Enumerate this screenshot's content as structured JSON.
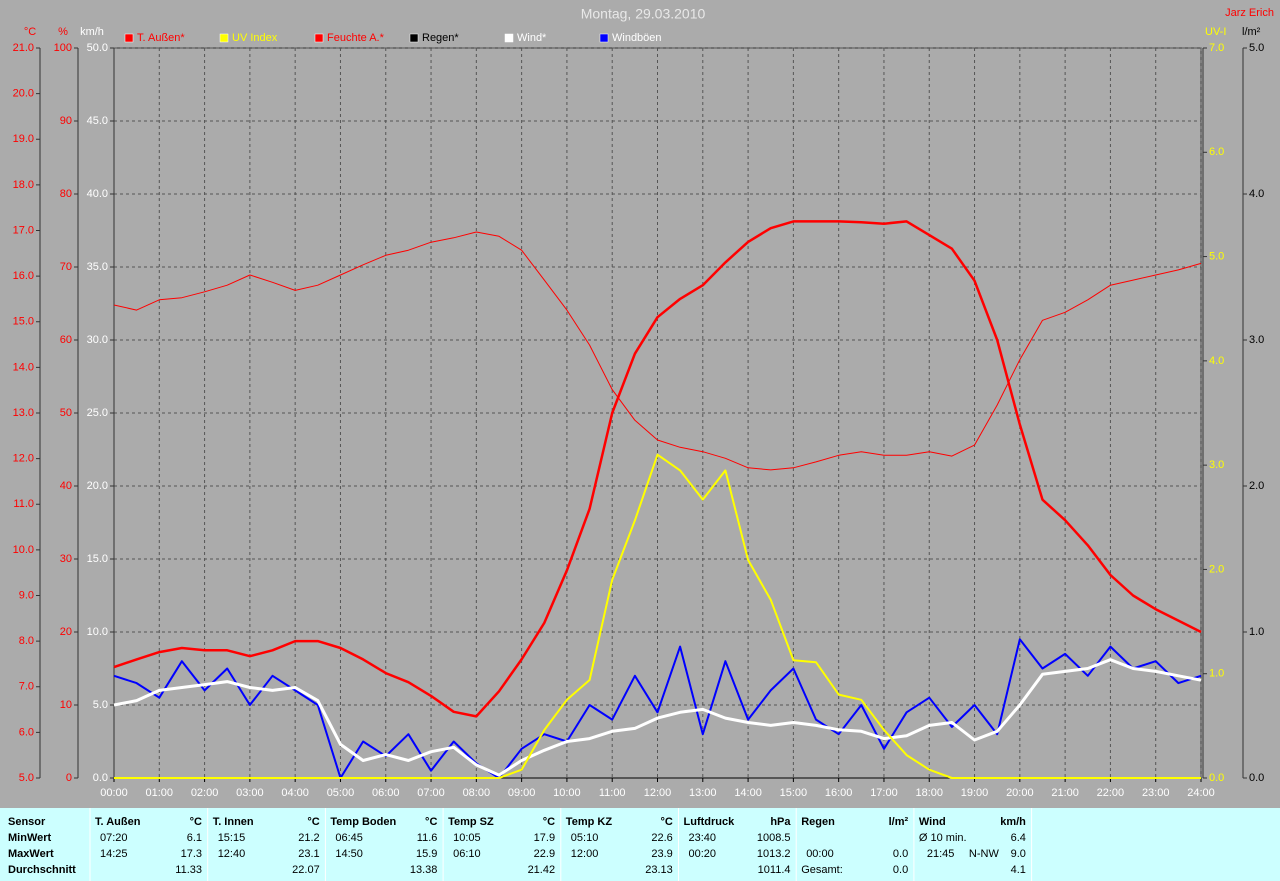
{
  "chart_data": {
    "type": "line",
    "title": "Montag, 29.03.2010",
    "author": "Jarz Erich",
    "grid": true,
    "x": [
      0,
      0.5,
      1,
      1.5,
      2,
      2.5,
      3,
      3.5,
      4,
      4.5,
      5,
      5.5,
      6,
      6.5,
      7,
      7.5,
      8,
      8.5,
      9,
      9.5,
      10,
      10.5,
      11,
      11.5,
      12,
      12.5,
      13,
      13.5,
      14,
      14.5,
      15,
      15.5,
      16,
      16.5,
      17,
      17.5,
      18,
      18.5,
      19,
      19.5,
      20,
      20.5,
      21,
      21.5,
      22,
      22.5,
      23,
      23.5,
      24
    ],
    "xlim": [
      0,
      24
    ],
    "xticks": [
      {
        "value": 0,
        "label": "00:00"
      },
      {
        "value": 1,
        "label": "01:00"
      },
      {
        "value": 2,
        "label": "02:00"
      },
      {
        "value": 3,
        "label": "03:00"
      },
      {
        "value": 4,
        "label": "04:00"
      },
      {
        "value": 5,
        "label": "05:00"
      },
      {
        "value": 6,
        "label": "06:00"
      },
      {
        "value": 7,
        "label": "07:00"
      },
      {
        "value": 8,
        "label": "08:00"
      },
      {
        "value": 9,
        "label": "09:00"
      },
      {
        "value": 10,
        "label": "10:00"
      },
      {
        "value": 11,
        "label": "11:00"
      },
      {
        "value": 12,
        "label": "12:00"
      },
      {
        "value": 13,
        "label": "13:00"
      },
      {
        "value": 14,
        "label": "14:00"
      },
      {
        "value": 15,
        "label": "15:00"
      },
      {
        "value": 16,
        "label": "16:00"
      },
      {
        "value": 17,
        "label": "17:00"
      },
      {
        "value": 18,
        "label": "18:00"
      },
      {
        "value": 19,
        "label": "19:00"
      },
      {
        "value": 20,
        "label": "20:00"
      },
      {
        "value": 21,
        "label": "21:00"
      },
      {
        "value": 22,
        "label": "22:00"
      },
      {
        "value": 23,
        "label": "23:00"
      },
      {
        "value": 24,
        "label": "24:00"
      }
    ],
    "axes": [
      {
        "label": "°C",
        "color": "#ff0000",
        "lim": [
          5,
          21
        ],
        "ticks": [
          {
            "value": 5,
            "label": "5.0"
          },
          {
            "value": 6,
            "label": "6.0"
          },
          {
            "value": 7,
            "label": "7.0"
          },
          {
            "value": 8,
            "label": "8.0"
          },
          {
            "value": 9,
            "label": "9.0"
          },
          {
            "value": 10,
            "label": "10.0"
          },
          {
            "value": 11,
            "label": "11.0"
          },
          {
            "value": 12,
            "label": "12.0"
          },
          {
            "value": 13,
            "label": "13.0"
          },
          {
            "value": 14,
            "label": "14.0"
          },
          {
            "value": 15,
            "label": "15.0"
          },
          {
            "value": 16,
            "label": "16.0"
          },
          {
            "value": 17,
            "label": "17.0"
          },
          {
            "value": 18,
            "label": "18.0"
          },
          {
            "value": 19,
            "label": "19.0"
          },
          {
            "value": 20,
            "label": "20.0"
          },
          {
            "value": 21,
            "label": "21.0"
          }
        ]
      },
      {
        "label": "%",
        "color": "#ff0000",
        "lim": [
          0,
          100
        ],
        "ticks": [
          0,
          10,
          20,
          30,
          40,
          50,
          60,
          70,
          80,
          90,
          100
        ]
      },
      {
        "label": "km/h",
        "color": "#ffffff",
        "lim": [
          0,
          50
        ],
        "ticks": [
          {
            "value": 0,
            "label": "0.0"
          },
          {
            "value": 5,
            "label": "5.0"
          },
          {
            "value": 10,
            "label": "10.0"
          },
          {
            "value": 15,
            "label": "15.0"
          },
          {
            "value": 20,
            "label": "20.0"
          },
          {
            "value": 25,
            "label": "25.0"
          },
          {
            "value": 30,
            "label": "30.0"
          },
          {
            "value": 35,
            "label": "35.0"
          },
          {
            "value": 40,
            "label": "40.0"
          },
          {
            "value": 45,
            "label": "45.0"
          },
          {
            "value": 50,
            "label": "50.0"
          }
        ]
      },
      {
        "label": "UV-I",
        "color": "#ffff00",
        "lim": [
          0,
          7
        ],
        "ticks": [
          {
            "value": 0,
            "label": "0.0"
          },
          {
            "value": 1,
            "label": "1.0"
          },
          {
            "value": 2,
            "label": "2.0"
          },
          {
            "value": 3,
            "label": "3.0"
          },
          {
            "value": 4,
            "label": "4.0"
          },
          {
            "value": 5,
            "label": "5.0"
          },
          {
            "value": 6,
            "label": "6.0"
          },
          {
            "value": 7,
            "label": "7.0"
          }
        ]
      },
      {
        "label": "l/m²",
        "color": "#000000",
        "lim": [
          0,
          5
        ],
        "ticks": [
          {
            "value": 0,
            "label": "0.0"
          },
          {
            "value": 1,
            "label": "1.0"
          },
          {
            "value": 2,
            "label": "2.0"
          },
          {
            "value": 3,
            "label": "3.0"
          },
          {
            "value": 4,
            "label": "4.0"
          },
          {
            "value": 5,
            "label": "5.0"
          }
        ]
      }
    ],
    "series": [
      {
        "name": "T. Außen*",
        "color": "#ff0000",
        "axis": 0,
        "width": 2.5,
        "values": [
          7.43,
          7.6,
          7.76,
          7.85,
          7.8,
          7.8,
          7.67,
          7.8,
          8.0,
          8.0,
          7.85,
          7.6,
          7.3,
          7.1,
          6.8,
          6.45,
          6.35,
          6.9,
          7.6,
          8.4,
          9.55,
          10.9,
          13.0,
          14.3,
          15.1,
          15.5,
          15.8,
          16.3,
          16.75,
          17.05,
          17.2,
          17.2,
          17.2,
          17.18,
          17.15,
          17.2,
          16.9,
          16.6,
          15.9,
          14.6,
          12.75,
          11.1,
          10.65,
          10.1,
          9.45,
          9.0,
          8.7,
          8.45,
          8.2
        ]
      },
      {
        "name": "UV Index",
        "color": "#ffff00",
        "axis": 3,
        "width": 2,
        "values": [
          0,
          0,
          0,
          0,
          0,
          0,
          0,
          0,
          0,
          0,
          0,
          0,
          0,
          0,
          0,
          0,
          0,
          0,
          0.08,
          0.46,
          0.75,
          0.94,
          1.9,
          2.47,
          3.1,
          2.95,
          2.67,
          2.95,
          2.09,
          1.71,
          1.13,
          1.11,
          0.8,
          0.75,
          0.46,
          0.22,
          0.08,
          0,
          0,
          0,
          0,
          0,
          0,
          0,
          0,
          0,
          0,
          0,
          0
        ]
      },
      {
        "name": "Feuchte A.*",
        "color": "#ff0000",
        "axis": 1,
        "width": 1,
        "values": [
          64.8,
          64.1,
          65.5,
          65.8,
          66.6,
          67.5,
          68.9,
          67.9,
          66.8,
          67.5,
          68.9,
          70.3,
          71.6,
          72.3,
          73.4,
          74.0,
          74.8,
          74.2,
          72.3,
          68.2,
          64.1,
          59.3,
          53.2,
          49.0,
          46.3,
          45.3,
          44.7,
          43.8,
          42.5,
          42.2,
          42.5,
          43.3,
          44.2,
          44.7,
          44.2,
          44.2,
          44.7,
          44.1,
          45.6,
          51.1,
          57.3,
          62.7,
          63.8,
          65.5,
          67.5,
          68.2,
          68.9,
          69.6,
          70.5
        ]
      },
      {
        "name": "Regen*",
        "color": "#000000",
        "axis": 4,
        "width": 1,
        "values": [
          0,
          0,
          0,
          0,
          0,
          0,
          0,
          0,
          0,
          0,
          0,
          0,
          0,
          0,
          0,
          0,
          0,
          0,
          0,
          0,
          0,
          0,
          0,
          0,
          0,
          0,
          0,
          0,
          0,
          0,
          0,
          0,
          0,
          0,
          0,
          0,
          0,
          0,
          0,
          0,
          0,
          0,
          0,
          0,
          0,
          0,
          0,
          0,
          0
        ]
      },
      {
        "name": "Wind*",
        "color": "#ffffff",
        "axis": 2,
        "width": 3,
        "values": [
          5.0,
          5.3,
          6.0,
          6.2,
          6.4,
          6.6,
          6.2,
          6.0,
          6.2,
          5.3,
          2.3,
          1.2,
          1.6,
          1.2,
          1.8,
          2.1,
          0.9,
          0.2,
          1.2,
          1.9,
          2.5,
          2.7,
          3.2,
          3.4,
          4.1,
          4.5,
          4.7,
          4.1,
          3.8,
          3.6,
          3.8,
          3.6,
          3.3,
          3.2,
          2.7,
          2.9,
          3.6,
          3.8,
          2.6,
          3.2,
          5.0,
          7.1,
          7.3,
          7.5,
          8.1,
          7.5,
          7.3,
          7.0,
          6.7
        ]
      },
      {
        "name": "Windböen",
        "color": "#0000ff",
        "axis": 2,
        "width": 2,
        "values": [
          7.0,
          6.5,
          5.5,
          8.0,
          6.0,
          7.5,
          5.0,
          7.0,
          6.0,
          5.0,
          0,
          2.5,
          1.5,
          3.0,
          0.5,
          2.5,
          1.0,
          0,
          2.0,
          3.0,
          2.5,
          5.0,
          4.0,
          7.0,
          4.5,
          9.0,
          3.0,
          8.0,
          4.0,
          6.0,
          7.5,
          4.0,
          3.0,
          5.0,
          2.0,
          4.5,
          5.5,
          3.5,
          5.0,
          3.0,
          9.5,
          7.5,
          8.5,
          7.0,
          9.0,
          7.5,
          8.0,
          6.5,
          7.0
        ]
      }
    ]
  },
  "table": {
    "row_labels": [
      "Sensor",
      "MinWert",
      "MaxWert",
      "Durchschnitt"
    ],
    "groups": [
      {
        "title": "T. Außen",
        "unit": "°C",
        "min": {
          "time": "07:20",
          "value": "6.1"
        },
        "max": {
          "time": "14:25",
          "value": "17.3"
        },
        "avg": {
          "value": "11.33"
        }
      },
      {
        "title": "T. Innen",
        "unit": "°C",
        "min": {
          "time": "15:15",
          "value": "21.2"
        },
        "max": {
          "time": "12:40",
          "value": "23.1"
        },
        "avg": {
          "value": "22.07"
        }
      },
      {
        "title": "Temp Boden",
        "unit": "°C",
        "min": {
          "time": "06:45",
          "value": "11.6"
        },
        "max": {
          "time": "14:50",
          "value": "15.9"
        },
        "avg": {
          "value": "13.38"
        }
      },
      {
        "title": "Temp SZ",
        "unit": "°C",
        "min": {
          "time": "10:05",
          "value": "17.9"
        },
        "max": {
          "time": "06:10",
          "value": "22.9"
        },
        "avg": {
          "value": "21.42"
        }
      },
      {
        "title": "Temp KZ",
        "unit": "°C",
        "min": {
          "time": "05:10",
          "value": "22.6"
        },
        "max": {
          "time": "12:00",
          "value": "23.9"
        },
        "avg": {
          "value": "23.13"
        }
      },
      {
        "title": "Luftdruck",
        "unit": "hPa",
        "min": {
          "time": "23:40",
          "value": "1008.5"
        },
        "max": {
          "time": "00:20",
          "value": "1013.2"
        },
        "avg": {
          "value": "1011.4"
        }
      },
      {
        "title": "Regen",
        "unit": "l/m²",
        "max": {
          "time": "00:00",
          "value": "0.0"
        },
        "avg": {
          "label": "Gesamt:",
          "value": "0.0"
        }
      },
      {
        "title": "Wind",
        "unit": "km/h",
        "min": {
          "label": "Ø 10 min.",
          "value": "6.4"
        },
        "max": {
          "time": "21:45",
          "direction": "N-NW",
          "value": "9.0"
        },
        "avg": {
          "value": "4.1"
        }
      }
    ]
  }
}
